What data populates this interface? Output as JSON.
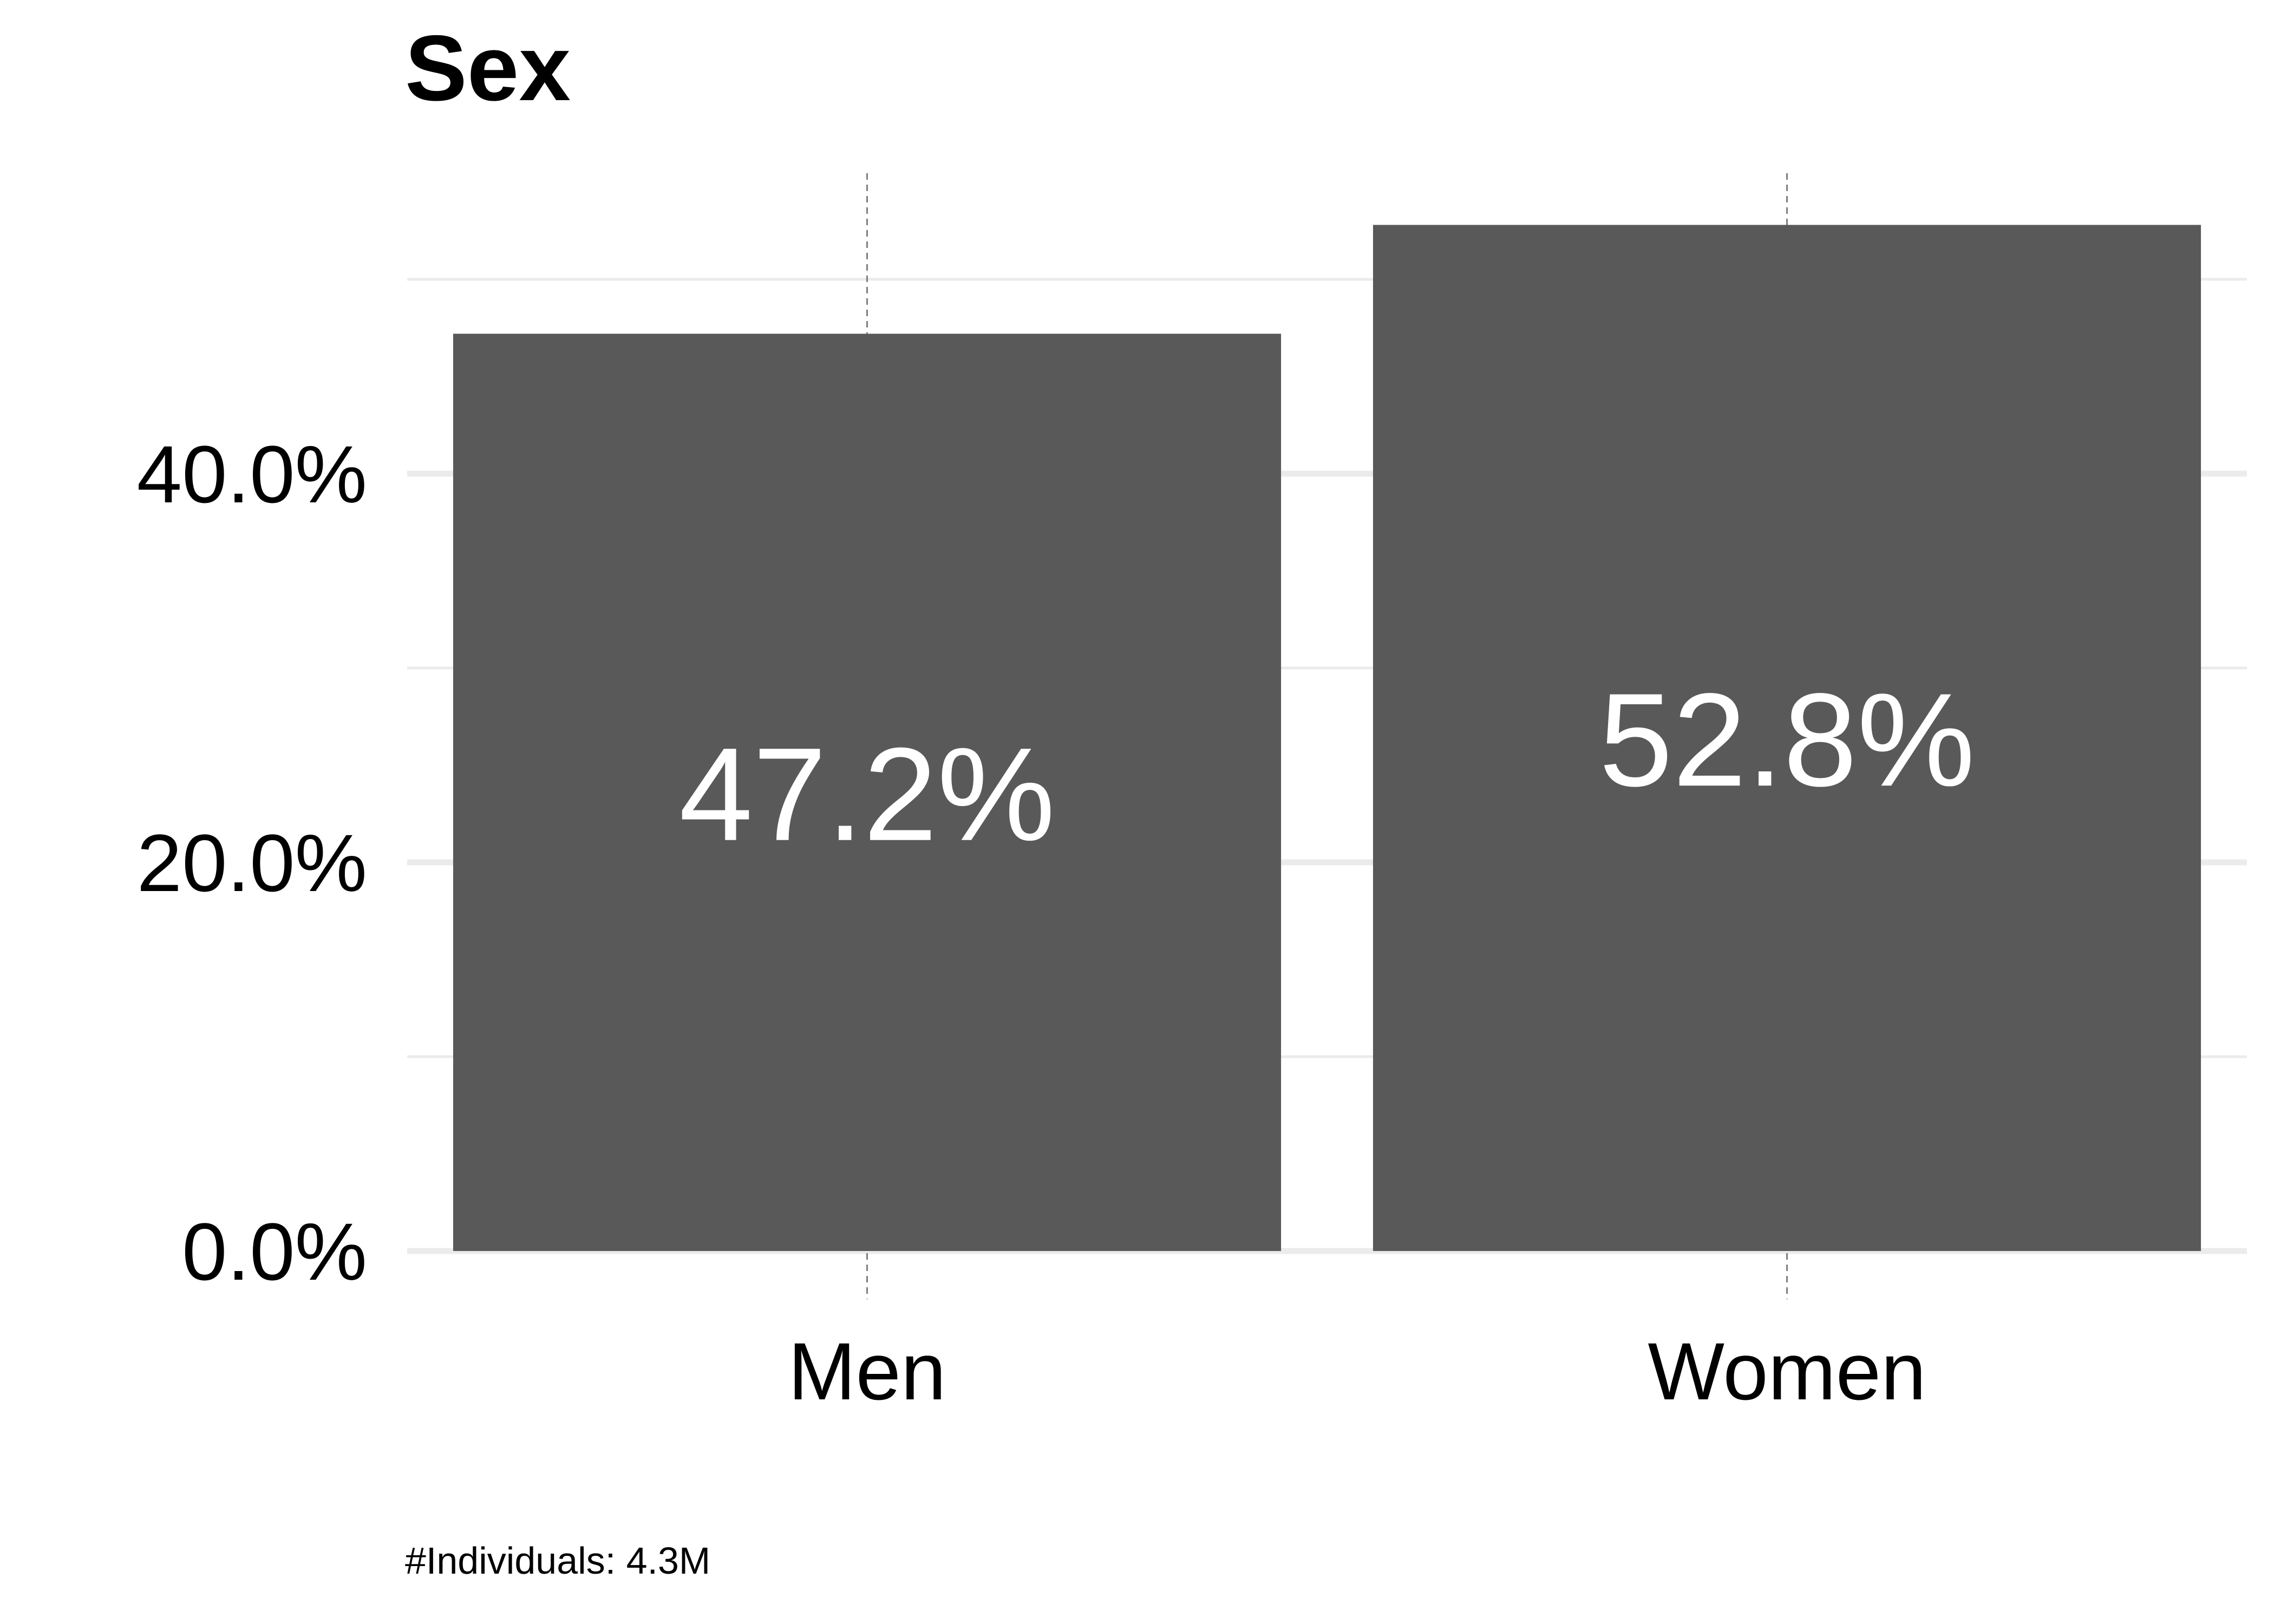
{
  "chart_data": {
    "type": "bar",
    "title": "Sex",
    "caption": "#Individuals: 4.3M",
    "categories": [
      "Men",
      "Women"
    ],
    "values": [
      47.2,
      52.8
    ],
    "data_labels": [
      "47.2%",
      "52.8%"
    ],
    "xlabel": "",
    "ylabel": "",
    "ylim": [
      0,
      55
    ],
    "y_ticks": [
      0,
      20,
      40
    ],
    "y_tick_labels": [
      "0.0%",
      "20.0%",
      "40.0%"
    ],
    "y_minor_ticks": [
      10,
      30,
      50
    ],
    "grid": true,
    "legend": "none",
    "colors": {
      "bar": "#595959",
      "grid": "#ebebeb",
      "bar_label": "#ffffff",
      "category_marker": "#7f7f7f"
    }
  }
}
